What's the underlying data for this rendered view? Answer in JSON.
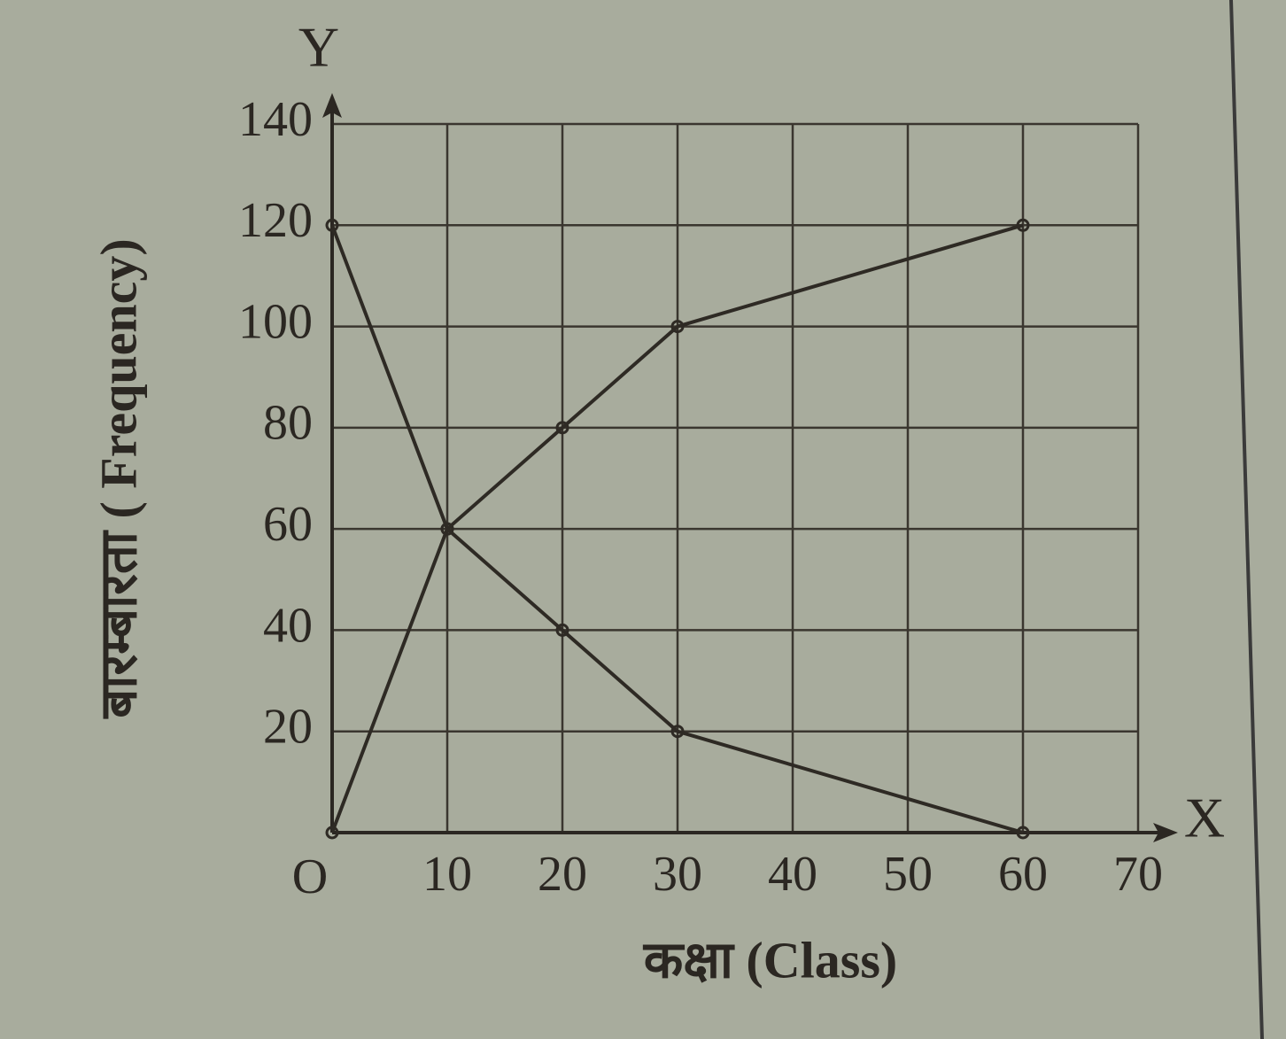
{
  "chart_data": {
    "type": "line",
    "x_label": "कक्षा (Class)",
    "y_label": "बारम्बारता ( Frequency)",
    "x_axis_letter": "X",
    "y_axis_letter": "Y",
    "origin_label": "O",
    "x": [
      0,
      10,
      20,
      30,
      60
    ],
    "series": [
      {
        "color": "#2e2a24",
        "values": [
          0,
          60,
          80,
          100,
          120
        ]
      },
      {
        "color": "#2e2a24",
        "values": [
          120,
          60,
          40,
          20,
          0
        ]
      }
    ],
    "xlim": [
      0,
      70
    ],
    "ylim": [
      0,
      140
    ],
    "xticks": [
      10,
      20,
      30,
      40,
      50,
      60,
      70
    ],
    "yticks": [
      20,
      40,
      60,
      80,
      100,
      120,
      140
    ],
    "grid": true
  }
}
